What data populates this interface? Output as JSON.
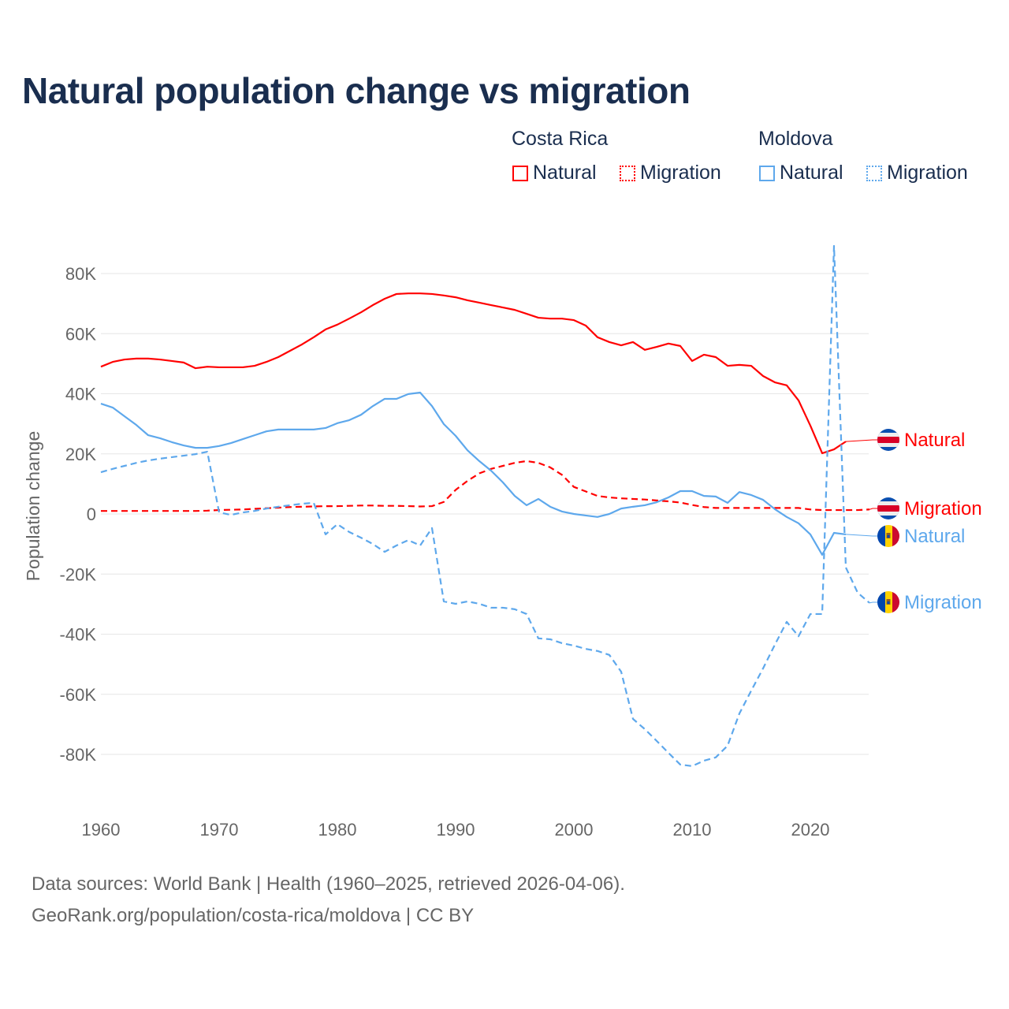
{
  "title": "Natural population change vs migration",
  "legend": {
    "groups": [
      {
        "name": "Costa Rica",
        "items": [
          {
            "label": "Natural",
            "style": "solid"
          },
          {
            "label": "Migration",
            "style": "dotted"
          }
        ],
        "color": "#ff0000"
      },
      {
        "name": "Moldova",
        "items": [
          {
            "label": "Natural",
            "style": "solid"
          },
          {
            "label": "Migration",
            "style": "dotted"
          }
        ],
        "color": "#5ea8ec"
      }
    ]
  },
  "footer": {
    "line1": "Data sources: World Bank | Health (1960–2025, retrieved 2026-04-06).",
    "line2": "GeoRank.org/population/costa-rica/moldova | CC BY"
  },
  "chart_data": {
    "type": "line",
    "title": "Natural population change vs migration",
    "xlabel": "",
    "ylabel": "Population change",
    "xlim": [
      1960,
      2025
    ],
    "ylim": [
      -100000,
      90000
    ],
    "x_ticks": [
      1960,
      1970,
      1980,
      1990,
      2000,
      2010,
      2020
    ],
    "x_tick_labels": [
      "1960",
      "1970",
      "1980",
      "1990",
      "2000",
      "2010",
      "2020"
    ],
    "y_ticks": [
      80000,
      60000,
      40000,
      20000,
      0,
      -20000,
      -40000,
      -60000,
      -80000
    ],
    "y_tick_labels": [
      "80K",
      "60K",
      "40K",
      "20K",
      "0",
      "-20K",
      "-40K",
      "-60K",
      "-80K"
    ],
    "grid": true,
    "legend_position": "top-right",
    "series": [
      {
        "name": "Costa Rica Natural",
        "end_label": "Natural",
        "country": "Costa Rica",
        "color": "#ff0000",
        "dash": "solid",
        "x_start": 1960,
        "values": [
          49000,
          50600,
          51400,
          51700,
          51700,
          51400,
          50900,
          50400,
          48500,
          49000,
          48800,
          48800,
          48800,
          49300,
          50600,
          52200,
          54300,
          56400,
          58800,
          61400,
          63000,
          65000,
          67100,
          69500,
          71600,
          73200,
          73400,
          73400,
          73200,
          72700,
          72100,
          71100,
          70300,
          69500,
          68700,
          67900,
          66600,
          65300,
          65000,
          65000,
          64500,
          62700,
          58800,
          57200,
          56100,
          57200,
          54600,
          55600,
          56700,
          55900,
          50900,
          53000,
          52200,
          49300,
          49600,
          49300,
          45900,
          43800,
          42800,
          37800,
          29400,
          20200,
          21500,
          24100
        ]
      },
      {
        "name": "Costa Rica Migration",
        "end_label": "Migration",
        "country": "Costa Rica",
        "color": "#ff0000",
        "dash": "dashed",
        "x_start": 1960,
        "values": [
          1000,
          1000,
          1000,
          1000,
          1000,
          1000,
          1000,
          1000,
          1000,
          1100,
          1300,
          1400,
          1500,
          1700,
          1900,
          2100,
          2300,
          2400,
          2500,
          2600,
          2600,
          2700,
          2800,
          2800,
          2700,
          2700,
          2600,
          2500,
          2600,
          4000,
          8000,
          11000,
          13500,
          15000,
          16000,
          17000,
          17600,
          17000,
          15500,
          13000,
          9000,
          7500,
          6000,
          5500,
          5200,
          5000,
          4800,
          4500,
          4200,
          3800,
          3000,
          2300,
          2000,
          2000,
          2000,
          2000,
          2000,
          2000,
          2000,
          2000,
          1500,
          1300,
          1300,
          1300,
          1300,
          1500
        ]
      },
      {
        "name": "Moldova Natural",
        "end_label": "Natural",
        "country": "Moldova",
        "color": "#5ea8ec",
        "dash": "solid",
        "x_start": 1960,
        "values": [
          36700,
          35400,
          32500,
          29600,
          26200,
          25200,
          23900,
          22800,
          22000,
          22000,
          22600,
          23600,
          24900,
          26200,
          27500,
          28100,
          28100,
          28100,
          28100,
          28600,
          30200,
          31200,
          33000,
          35900,
          38300,
          38300,
          39900,
          40400,
          35900,
          29900,
          26000,
          21200,
          17600,
          14400,
          10500,
          6000,
          2900,
          5000,
          2400,
          800,
          0,
          -500,
          -1000,
          0,
          1800,
          2400,
          2900,
          3900,
          5500,
          7600,
          7600,
          6000,
          5800,
          3700,
          7300,
          6300,
          4700,
          1600,
          -1000,
          -3100,
          -6800,
          -13600,
          -6300,
          -6800
        ]
      },
      {
        "name": "Moldova Migration",
        "end_label": "Migration",
        "country": "Moldova",
        "color": "#5ea8ec",
        "dash": "dashed",
        "x_start": 1960,
        "values": [
          13900,
          15000,
          16000,
          17000,
          17800,
          18400,
          18900,
          19400,
          19900,
          20700,
          500,
          -300,
          500,
          1000,
          1800,
          2400,
          2900,
          3400,
          3700,
          -6800,
          -3400,
          -6000,
          -7900,
          -10000,
          -12600,
          -10500,
          -8700,
          -10500,
          -4700,
          -29100,
          -29900,
          -29100,
          -29900,
          -31200,
          -31200,
          -31700,
          -33300,
          -41400,
          -41700,
          -43000,
          -43800,
          -44900,
          -45600,
          -46900,
          -52500,
          -68200,
          -71600,
          -75500,
          -79500,
          -83400,
          -83900,
          -82100,
          -81000,
          -77100,
          -66400,
          -58800,
          -51400,
          -43500,
          -35900,
          -40700,
          -33300,
          -33300,
          89200,
          -17800,
          -26200,
          -29600
        ]
      }
    ]
  }
}
